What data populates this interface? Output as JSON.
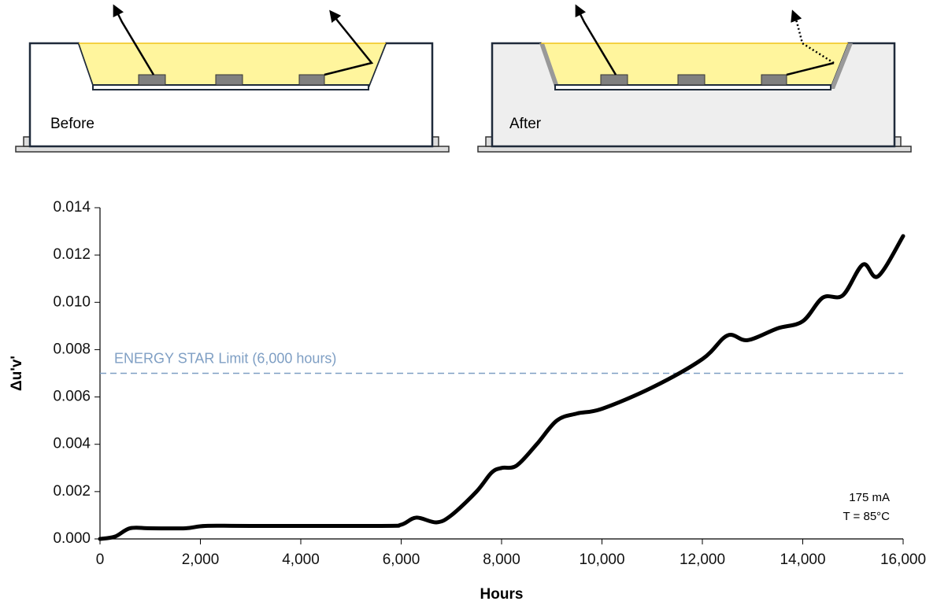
{
  "panels": [
    {
      "label": "Before"
    },
    {
      "label": "After"
    }
  ],
  "chart_data": {
    "type": "line",
    "x_label": "Hours",
    "y_label": "Δu'v'",
    "x": [
      0,
      300,
      600,
      1000,
      1700,
      2100,
      3000,
      5600,
      6000,
      6300,
      6700,
      7000,
      7500,
      7800,
      8000,
      8300,
      8700,
      9100,
      9500,
      10000,
      11000,
      12000,
      12500,
      12900,
      13500,
      14000,
      14400,
      14800,
      15200,
      15500,
      16000
    ],
    "series": [
      {
        "name": "Δu'v'",
        "color": "#000000",
        "values": [
          0,
          0.0001,
          0.00045,
          0.00045,
          0.00045,
          0.00055,
          0.00055,
          0.00055,
          0.0006,
          0.0009,
          0.0007,
          0.001,
          0.002,
          0.0028,
          0.003,
          0.0031,
          0.004,
          0.005,
          0.0053,
          0.0055,
          0.0064,
          0.0076,
          0.0086,
          0.0084,
          0.0089,
          0.0092,
          0.0102,
          0.0103,
          0.0116,
          0.0111,
          0.0128
        ]
      }
    ],
    "xlim": [
      0,
      16000
    ],
    "xticks": [
      0,
      {
        "value": 2000,
        "label": "2,000"
      },
      {
        "value": 4000,
        "label": "4,000"
      },
      {
        "value": 6000,
        "label": "6,000"
      },
      {
        "value": 8000,
        "label": "8,000"
      },
      {
        "value": 10000,
        "label": "10,000"
      },
      {
        "value": 12000,
        "label": "12,000"
      },
      {
        "value": 14000,
        "label": "14,000"
      },
      {
        "value": 16000,
        "label": "16,000"
      }
    ],
    "ylim": [
      0,
      0.014
    ],
    "yticks": [
      {
        "value": 0,
        "label": "0.000"
      },
      {
        "value": 0.002,
        "label": "0.002"
      },
      {
        "value": 0.004,
        "label": "0.004"
      },
      {
        "value": 0.006,
        "label": "0.006"
      },
      {
        "value": 0.008,
        "label": "0.008"
      },
      {
        "value": 0.01,
        "label": "0.010"
      },
      {
        "value": 0.012,
        "label": "0.012"
      },
      {
        "value": 0.014,
        "label": "0.014"
      }
    ],
    "reference_line": {
      "value": 0.007,
      "label": "ENERGY STAR Limit (6,000 hours)",
      "color": "#7f9fc4"
    },
    "annotations": [
      "175 mA",
      "T = 85°C"
    ]
  }
}
